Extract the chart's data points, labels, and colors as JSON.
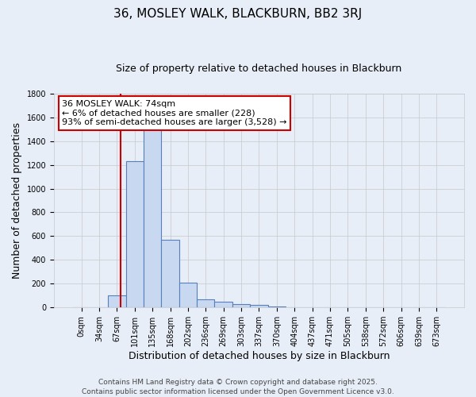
{
  "title": "36, MOSLEY WALK, BLACKBURN, BB2 3RJ",
  "subtitle": "Size of property relative to detached houses in Blackburn",
  "xlabel": "Distribution of detached houses by size in Blackburn",
  "ylabel": "Number of detached properties",
  "bar_labels": [
    "0sqm",
    "34sqm",
    "67sqm",
    "101sqm",
    "135sqm",
    "168sqm",
    "202sqm",
    "236sqm",
    "269sqm",
    "303sqm",
    "337sqm",
    "370sqm",
    "404sqm",
    "437sqm",
    "471sqm",
    "505sqm",
    "538sqm",
    "572sqm",
    "606sqm",
    "639sqm",
    "673sqm"
  ],
  "bar_values": [
    0,
    0,
    100,
    1230,
    1500,
    570,
    210,
    70,
    50,
    30,
    20,
    10,
    2,
    0,
    0,
    0,
    0,
    0,
    0,
    0,
    0
  ],
  "bar_color": "#c8d8f0",
  "bar_edge_color": "#5580bb",
  "ylim": [
    0,
    1800
  ],
  "vline_x_idx": 2.21,
  "vline_color": "#cc0000",
  "annotation_text": "36 MOSLEY WALK: 74sqm\n← 6% of detached houses are smaller (228)\n93% of semi-detached houses are larger (3,528) →",
  "annotation_box_color": "#ffffff",
  "annotation_box_edge": "#cc0000",
  "footer_line1": "Contains HM Land Registry data © Crown copyright and database right 2025.",
  "footer_line2": "Contains public sector information licensed under the Open Government Licence v3.0.",
  "bg_color": "#e8eef8",
  "grid_color": "#c8c8c8",
  "title_fontsize": 11,
  "subtitle_fontsize": 9,
  "axis_label_fontsize": 9,
  "tick_fontsize": 7,
  "annotation_fontsize": 8,
  "footer_fontsize": 6.5
}
